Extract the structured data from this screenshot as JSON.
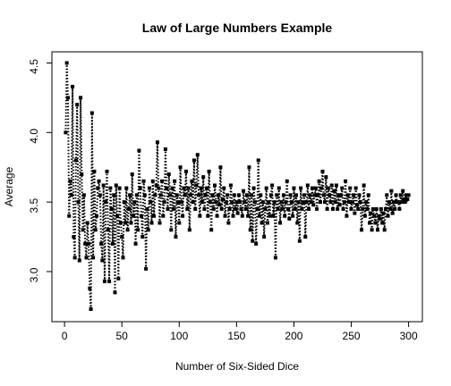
{
  "chart_data": {
    "type": "line",
    "title": "Law of Large Numbers Example",
    "xlabel": "Number of Six-Sided Dice",
    "ylabel": "Average",
    "color": "#000000",
    "x": [
      1,
      2,
      3,
      4,
      5,
      6,
      7,
      8,
      9,
      10,
      11,
      12,
      13,
      14,
      15,
      16,
      17,
      18,
      19,
      20,
      21,
      22,
      23,
      24,
      25,
      26,
      27,
      28,
      29,
      30,
      31,
      32,
      33,
      34,
      35,
      36,
      37,
      38,
      39,
      40,
      41,
      42,
      43,
      44,
      45,
      46,
      47,
      48,
      49,
      50,
      51,
      52,
      53,
      54,
      55,
      56,
      57,
      58,
      59,
      60,
      61,
      62,
      63,
      64,
      65,
      66,
      67,
      68,
      69,
      70,
      71,
      72,
      73,
      74,
      75,
      76,
      77,
      78,
      79,
      80,
      81,
      82,
      83,
      84,
      85,
      86,
      87,
      88,
      89,
      90,
      91,
      92,
      93,
      94,
      95,
      96,
      97,
      98,
      99,
      100,
      101,
      102,
      103,
      104,
      105,
      106,
      107,
      108,
      109,
      110,
      111,
      112,
      113,
      114,
      115,
      116,
      117,
      118,
      119,
      120,
      121,
      122,
      123,
      124,
      125,
      126,
      127,
      128,
      129,
      130,
      131,
      132,
      133,
      134,
      135,
      136,
      137,
      138,
      139,
      140,
      141,
      142,
      143,
      144,
      145,
      146,
      147,
      148,
      149,
      150,
      151,
      152,
      153,
      154,
      155,
      156,
      157,
      158,
      159,
      160,
      161,
      162,
      163,
      164,
      165,
      166,
      167,
      168,
      169,
      170,
      171,
      172,
      173,
      174,
      175,
      176,
      177,
      178,
      179,
      180,
      181,
      182,
      183,
      184,
      185,
      186,
      187,
      188,
      189,
      190,
      191,
      192,
      193,
      194,
      195,
      196,
      197,
      198,
      199,
      200,
      201,
      202,
      203,
      204,
      205,
      206,
      207,
      208,
      209,
      210,
      211,
      212,
      213,
      214,
      215,
      216,
      217,
      218,
      219,
      220,
      221,
      222,
      223,
      224,
      225,
      226,
      227,
      228,
      229,
      230,
      231,
      232,
      233,
      234,
      235,
      236,
      237,
      238,
      239,
      240,
      241,
      242,
      243,
      244,
      245,
      246,
      247,
      248,
      249,
      250,
      251,
      252,
      253,
      254,
      255,
      256,
      257,
      258,
      259,
      260,
      261,
      262,
      263,
      264,
      265,
      266,
      267,
      268,
      269,
      270,
      271,
      272,
      273,
      274,
      275,
      276,
      277,
      278,
      279,
      280,
      281,
      282,
      283,
      284,
      285,
      286,
      287,
      288,
      289,
      290,
      291,
      292,
      293,
      294,
      295,
      296,
      297,
      298,
      299,
      300
    ],
    "values": [
      4.0,
      4.5,
      4.25,
      3.4,
      3.65,
      3.55,
      4.33,
      3.25,
      3.1,
      3.8,
      4.2,
      3.5,
      3.08,
      4.25,
      3.7,
      3.3,
      3.55,
      3.2,
      3.1,
      3.35,
      3.2,
      2.88,
      2.73,
      4.14,
      3.1,
      3.72,
      3.3,
      3.4,
      3.6,
      3.65,
      3.55,
      3.2,
      3.08,
      3.62,
      2.93,
      3.5,
      3.72,
      3.3,
      2.93,
      3.6,
      3.45,
      3.2,
      3.55,
      2.85,
      3.62,
      3.4,
      2.95,
      3.6,
      3.35,
      3.25,
      3.1,
      3.5,
      3.35,
      3.6,
      3.3,
      3.45,
      3.55,
      3.35,
      3.7,
      3.4,
      3.5,
      3.2,
      3.55,
      3.3,
      3.87,
      3.6,
      3.4,
      3.25,
      3.65,
      3.55,
      3.02,
      3.45,
      3.3,
      3.6,
      3.5,
      3.35,
      3.65,
      3.4,
      3.55,
      3.62,
      3.93,
      3.6,
      3.35,
      3.55,
      3.65,
      3.4,
      3.5,
      3.88,
      3.6,
      3.45,
      3.7,
      3.55,
      3.3,
      3.6,
      3.45,
      3.65,
      3.25,
      3.55,
      3.5,
      3.35,
      3.75,
      3.5,
      3.4,
      3.6,
      3.55,
      3.72,
      3.45,
      3.6,
      3.3,
      3.55,
      3.65,
      3.5,
      3.8,
      3.45,
      3.62,
      3.84,
      3.55,
      3.4,
      3.6,
      3.5,
      3.68,
      3.45,
      3.55,
      3.6,
      3.4,
      3.72,
      3.5,
      3.3,
      3.55,
      3.45,
      3.62,
      3.5,
      3.4,
      3.55,
      3.48,
      3.75,
      3.45,
      3.52,
      3.6,
      3.4,
      3.5,
      3.55,
      3.35,
      3.45,
      3.62,
      3.5,
      3.4,
      3.55,
      3.45,
      3.5,
      3.42,
      3.55,
      3.5,
      3.45,
      3.4,
      3.58,
      3.5,
      3.45,
      3.55,
      3.4,
      3.75,
      3.3,
      3.55,
      3.22,
      3.6,
      3.5,
      3.2,
      3.45,
      3.8,
      3.4,
      3.55,
      3.35,
      3.5,
      3.25,
      3.45,
      3.6,
      3.35,
      3.5,
      3.4,
      3.55,
      3.62,
      3.4,
      3.5,
      3.1,
      3.55,
      3.45,
      3.6,
      3.35,
      3.5,
      3.45,
      3.55,
      3.4,
      3.5,
      3.65,
      3.45,
      3.38,
      3.55,
      3.5,
      3.4,
      3.6,
      3.45,
      3.55,
      3.35,
      3.5,
      3.22,
      3.6,
      3.45,
      3.5,
      3.55,
      3.25,
      3.5,
      3.62,
      3.45,
      3.55,
      3.5,
      3.6,
      3.48,
      3.55,
      3.6,
      3.45,
      3.55,
      3.65,
      3.5,
      3.6,
      3.72,
      3.55,
      3.5,
      3.68,
      3.45,
      3.6,
      3.55,
      3.5,
      3.62,
      3.45,
      3.58,
      3.5,
      3.62,
      3.45,
      3.55,
      3.48,
      3.55,
      3.6,
      3.45,
      3.5,
      3.65,
      3.4,
      3.55,
      3.5,
      3.6,
      3.45,
      3.5,
      3.55,
      3.42,
      3.6,
      3.48,
      3.45,
      3.55,
      3.5,
      3.3,
      3.45,
      3.62,
      3.4,
      3.5,
      3.45,
      3.55,
      3.35,
      3.42,
      3.3,
      3.45,
      3.4,
      3.35,
      3.45,
      3.3,
      3.4,
      3.38,
      3.45,
      3.35,
      3.42,
      3.3,
      3.45,
      3.55,
      3.4,
      3.5,
      3.45,
      3.58,
      3.42,
      3.5,
      3.45,
      3.55,
      3.5,
      3.5,
      3.45,
      3.55,
      3.5,
      3.58,
      3.52,
      3.5,
      3.55,
      3.52,
      3.55
    ],
    "xlim": [
      -11,
      312
    ],
    "xticks": [
      0,
      50,
      100,
      150,
      200,
      250,
      300
    ],
    "ylim": [
      2.64,
      4.58
    ],
    "yticks": [
      {
        "value": 3,
        "label": "3.0"
      },
      {
        "value": 3.5,
        "label": "3.5"
      },
      {
        "value": 4,
        "label": "4.0"
      },
      {
        "value": 4.5,
        "label": "4.5"
      }
    ]
  }
}
